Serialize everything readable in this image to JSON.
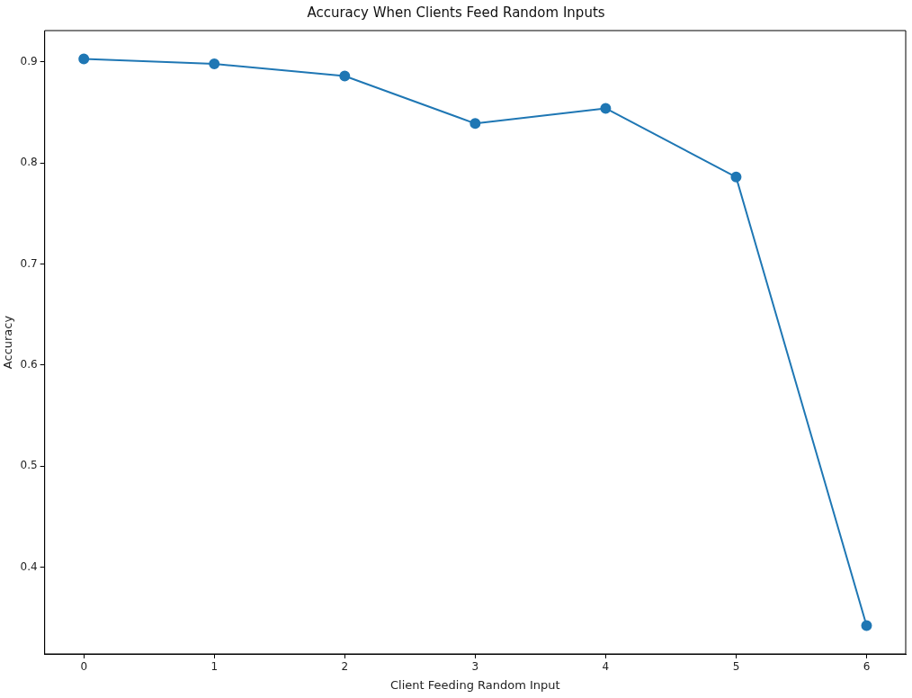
{
  "chart_data": {
    "type": "line",
    "title": "Accuracy When Clients Feed Random Inputs",
    "xlabel": "Client Feeding Random Input",
    "ylabel": "Accuracy",
    "x": [
      0,
      1,
      2,
      3,
      4,
      5,
      6
    ],
    "series": [
      {
        "color": "#1f77b4",
        "values": [
          0.903,
          0.898,
          0.886,
          0.839,
          0.854,
          0.786,
          0.342
        ]
      }
    ],
    "xlim": [
      -0.3,
      6.3
    ],
    "xticks": [
      0,
      1,
      2,
      3,
      4,
      5,
      6
    ],
    "ylim": [
      0.314,
      0.931
    ],
    "yticks": [
      0.4,
      0.5,
      0.6,
      0.7,
      0.8,
      0.9
    ],
    "grid": false,
    "marker": "circle",
    "line_style": "solid"
  }
}
